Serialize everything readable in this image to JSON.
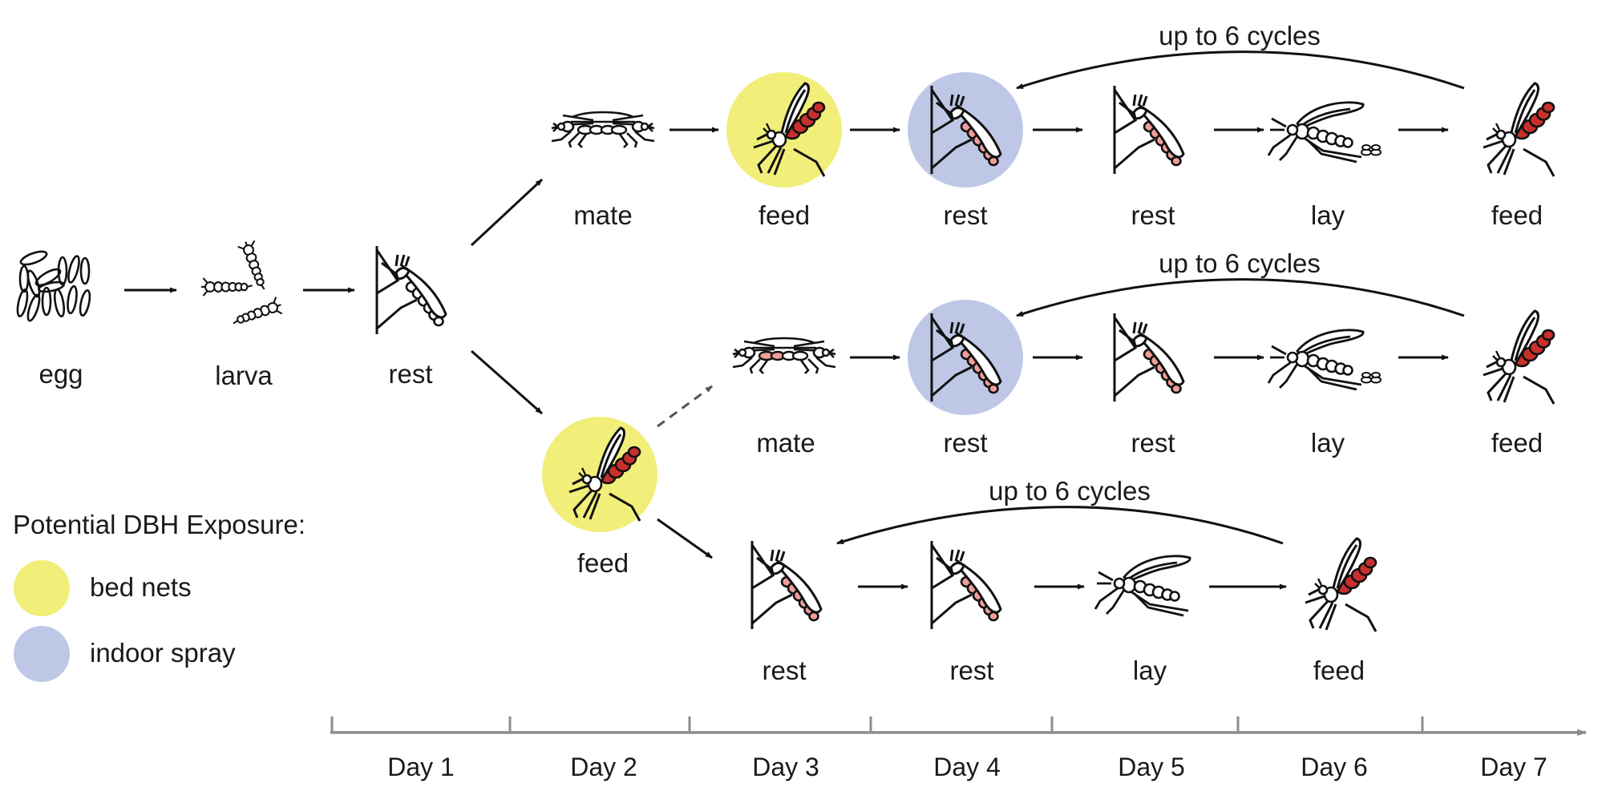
{
  "colors": {
    "bed_nets": "#f1ee7a",
    "indoor_spray": "#bec8e6",
    "blood_dark": "#c9302c",
    "blood_light": "#ef9d98",
    "ink": "#111111",
    "axis": "#8c8c8c"
  },
  "stages": {
    "egg": "egg",
    "larva": "larva",
    "rest": "rest",
    "mate": "mate",
    "feed": "feed",
    "lay": "lay"
  },
  "cycle_label": "up to 6 cycles",
  "legend": {
    "title": "Potential DBH Exposure:",
    "items": [
      {
        "label": "bed nets",
        "color": "#f1ee7a"
      },
      {
        "label": "indoor spray",
        "color": "#bec8e6"
      }
    ]
  },
  "timeline": {
    "days": [
      "Day 1",
      "Day 2",
      "Day 3",
      "Day 4",
      "Day 5",
      "Day 6",
      "Day 7"
    ]
  },
  "icons": [
    "egg-cluster-icon",
    "larva-icon",
    "resting-mosquito-icon",
    "mating-mosquitoes-icon",
    "feeding-mosquito-icon",
    "egg-laying-mosquito-icon"
  ]
}
